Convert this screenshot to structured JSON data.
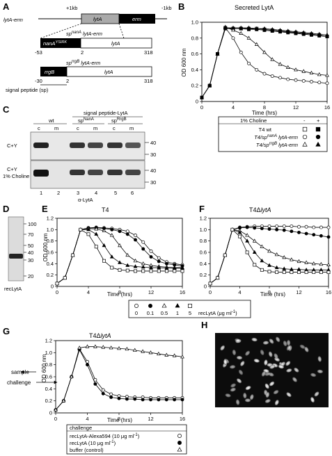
{
  "panels": {
    "A": {
      "label": "A",
      "construct_name": "lytA-erm",
      "plus_left": "+1kb",
      "minus_right": "-1kb",
      "lyta": "lytA",
      "erm": "erm",
      "nanA_construct": "sp",
      "nanA_sup": "nanA",
      "nanA_suffix": " lytA-erm",
      "nanA_box": "nanA",
      "nanA_box_sup": "YSIRK",
      "rrgB_construct": "sp",
      "rrgB_sup": "rrgB",
      "rrgB_suffix": " lytA-erm",
      "rrgB_box": "rrgB",
      "pos_neg53": "-53",
      "pos_neg30": "-30",
      "pos_2a": "2",
      "pos_2b": "2",
      "pos_318a": "318",
      "pos_318b": "318",
      "signal_caption": "signal peptide (sp)"
    },
    "B": {
      "label": "B",
      "title": "Secreted LytA",
      "ylabel": "OD 600 nm",
      "xlabel": "Time (hrs)",
      "legend_header": "1% Choline",
      "legend_minus": "-",
      "legend_plus": "+",
      "legend_rows": [
        "T4 wt",
        "T4/sp",
        "T4/sp"
      ],
      "legend_sups": [
        "",
        "nanA",
        "rrgB"
      ],
      "legend_suffixes": [
        "",
        " lytA-erm",
        " lytA-erm"
      ]
    },
    "C": {
      "label": "C",
      "header_wt": "wt",
      "header_sp": "signal peptide-LytA",
      "sp_nanA": "sp",
      "sp_nanA_sup": "NanA",
      "sp_rrgB": "sp",
      "sp_rrgB_sup": "RrgB",
      "lanes": [
        "c",
        "m",
        "c",
        "m",
        "c",
        "m"
      ],
      "lane_numbers": [
        "1",
        "2",
        "3",
        "4",
        "5",
        "6"
      ],
      "row1": "C+Y",
      "row2a": "C+Y",
      "row2b": "1% Choline",
      "mw_40a": "40",
      "mw_30a": "30",
      "mw_40b": "40",
      "mw_30b": "30",
      "antibody": "α-LytA"
    },
    "D": {
      "label": "D",
      "mw": [
        "100",
        "70",
        "50",
        "40",
        "30",
        "20"
      ],
      "caption": "recLytA"
    },
    "E": {
      "label": "E",
      "title": "T4",
      "ylabel": "OD 600 nm",
      "xlabel": "Time (hrs)"
    },
    "F": {
      "label": "F",
      "title": "T4ΔlytA",
      "xlabel": "Time (hrs)"
    },
    "EF_legend": {
      "values": [
        "0",
        "0.1",
        "0.5",
        "1",
        "5"
      ],
      "unit": "recLytA (μg ml",
      "unit_sup": "-1",
      "unit_close": ")"
    },
    "G": {
      "label": "G",
      "title": "T4ΔlytA",
      "ylabel": "OD 600 nm",
      "xlabel": "Time (hrs)",
      "sample_label": "sample",
      "challenge_label": "challenge",
      "legend_header": "challenge",
      "legend_rows": [
        "recLytA-Alexa594 (10 μg ml",
        "recLytA (10 μg ml",
        "buffer (control)"
      ],
      "legend_sups": [
        "-1",
        "-1",
        ""
      ],
      "legend_close": [
        ")",
        ")",
        ""
      ]
    },
    "H": {
      "label": "H"
    }
  },
  "chart_data": [
    {
      "panel": "B",
      "type": "line",
      "title": "Secreted LytA",
      "xlabel": "Time (hrs)",
      "ylabel": "OD 600 nm",
      "xlim": [
        0,
        16
      ],
      "ylim": [
        0,
        1.0
      ],
      "xticks": [
        0,
        4,
        8,
        12,
        16
      ],
      "yticks": [
        0,
        0.2,
        0.4,
        0.6,
        0.8,
        1.0
      ],
      "series": [
        {
          "name": "T4 wt",
          "marker": "square-open",
          "x": [
            0,
            1,
            2,
            3,
            4,
            5,
            6,
            7,
            8,
            9,
            10,
            11,
            12,
            13,
            14,
            15,
            16
          ],
          "y": [
            0.05,
            0.2,
            0.6,
            0.93,
            0.92,
            0.92,
            0.92,
            0.92,
            0.91,
            0.9,
            0.89,
            0.88,
            0.87,
            0.86,
            0.85,
            0.84,
            0.82
          ]
        },
        {
          "name": "T4 wt",
          "marker": "square-filled",
          "x": [
            0,
            1,
            2,
            3,
            4,
            5,
            6,
            7,
            8,
            9,
            10,
            11,
            12,
            13,
            14,
            15,
            16
          ],
          "y": [
            0.05,
            0.2,
            0.6,
            0.92,
            0.92,
            0.92,
            0.91,
            0.91,
            0.9,
            0.89,
            0.88,
            0.87,
            0.86,
            0.85,
            0.84,
            0.83,
            0.82
          ]
        },
        {
          "name": "T4/spnanA lytA-erm",
          "marker": "circle-open",
          "x": [
            0,
            1,
            2,
            3,
            4,
            5,
            6,
            7,
            8,
            9,
            10,
            11,
            12,
            13,
            14,
            15,
            16
          ],
          "y": [
            0.05,
            0.2,
            0.6,
            0.93,
            0.8,
            0.62,
            0.48,
            0.4,
            0.35,
            0.32,
            0.3,
            0.28,
            0.27,
            0.26,
            0.25,
            0.24,
            0.23
          ]
        },
        {
          "name": "T4/spnanA lytA-erm",
          "marker": "circle-filled",
          "x": [
            0,
            1,
            2,
            3,
            4,
            5,
            6,
            7,
            8,
            9,
            10,
            11,
            12,
            13,
            14,
            15,
            16
          ],
          "y": [
            0.05,
            0.2,
            0.6,
            0.92,
            0.92,
            0.92,
            0.92,
            0.91,
            0.9,
            0.89,
            0.88,
            0.87,
            0.86,
            0.85,
            0.84,
            0.83,
            0.82
          ]
        },
        {
          "name": "T4/sprrgB lytA-erm",
          "marker": "triangle-open",
          "x": [
            0,
            1,
            2,
            3,
            4,
            5,
            6,
            7,
            8,
            9,
            10,
            11,
            12,
            13,
            14,
            15,
            16
          ],
          "y": [
            0.05,
            0.2,
            0.6,
            0.94,
            0.9,
            0.86,
            0.8,
            0.72,
            0.62,
            0.53,
            0.47,
            0.43,
            0.4,
            0.38,
            0.36,
            0.34,
            0.33
          ]
        },
        {
          "name": "T4/sprrgB lytA-erm",
          "marker": "triangle-filled",
          "x": [
            0,
            1,
            2,
            3,
            4,
            5,
            6,
            7,
            8,
            9,
            10,
            11,
            12,
            13,
            14,
            15,
            16
          ],
          "y": [
            0.05,
            0.2,
            0.6,
            0.93,
            0.93,
            0.93,
            0.93,
            0.92,
            0.92,
            0.91,
            0.9,
            0.89,
            0.88,
            0.87,
            0.86,
            0.85,
            0.84
          ]
        }
      ]
    },
    {
      "panel": "E",
      "type": "line",
      "title": "T4",
      "xlabel": "Time (hrs)",
      "ylabel": "OD 600 nm",
      "xlim": [
        0,
        16
      ],
      "ylim": [
        0,
        1.2
      ],
      "xticks": [
        0,
        4,
        8,
        12,
        16
      ],
      "yticks": [
        0,
        0.2,
        0.4,
        0.6,
        0.8,
        1.0,
        1.2
      ],
      "series": [
        {
          "name": "0",
          "marker": "circle-open",
          "x": [
            0,
            1,
            2,
            3,
            4,
            5,
            6,
            7,
            8,
            9,
            10,
            11,
            12,
            13,
            14,
            15,
            16
          ],
          "y": [
            0.05,
            0.15,
            0.55,
            1.0,
            1.03,
            1.04,
            1.03,
            1.02,
            1.0,
            0.97,
            0.9,
            0.78,
            0.62,
            0.5,
            0.43,
            0.4,
            0.38
          ]
        },
        {
          "name": "0.1",
          "marker": "circle-filled",
          "x": [
            0,
            1,
            2,
            3,
            4,
            5,
            6,
            7,
            8,
            9,
            10,
            11,
            12,
            13,
            14,
            15,
            16
          ],
          "y": [
            0.05,
            0.15,
            0.55,
            1.0,
            1.03,
            1.03,
            1.02,
            1.0,
            0.97,
            0.92,
            0.82,
            0.66,
            0.52,
            0.44,
            0.4,
            0.38,
            0.36
          ]
        },
        {
          "name": "0.5",
          "marker": "triangle-open",
          "x": [
            0,
            1,
            2,
            3,
            4,
            5,
            6,
            7,
            8,
            9,
            10,
            11,
            12,
            13,
            14,
            15,
            16
          ],
          "y": [
            0.05,
            0.15,
            0.55,
            1.0,
            1.02,
            1.01,
            0.98,
            0.9,
            0.72,
            0.55,
            0.45,
            0.4,
            0.37,
            0.35,
            0.34,
            0.33,
            0.33
          ]
        },
        {
          "name": "1",
          "marker": "triangle-filled",
          "x": [
            0,
            1,
            2,
            3,
            4,
            5,
            6,
            7,
            8,
            9,
            10,
            11,
            12,
            13,
            14,
            15,
            16
          ],
          "y": [
            0.05,
            0.15,
            0.55,
            1.0,
            1.0,
            0.92,
            0.72,
            0.52,
            0.42,
            0.37,
            0.35,
            0.34,
            0.33,
            0.33,
            0.32,
            0.32,
            0.32
          ]
        },
        {
          "name": "5",
          "marker": "square-open",
          "x": [
            0,
            1,
            2,
            3,
            4,
            5,
            6,
            7,
            8,
            9,
            10,
            11,
            12,
            13,
            14,
            15,
            16
          ],
          "y": [
            0.05,
            0.15,
            0.55,
            1.0,
            0.92,
            0.7,
            0.45,
            0.33,
            0.29,
            0.28,
            0.27,
            0.27,
            0.27,
            0.27,
            0.27,
            0.27,
            0.27
          ]
        }
      ]
    },
    {
      "panel": "F",
      "type": "line",
      "title": "T4ΔlytA",
      "xlabel": "Time (hrs)",
      "ylabel": "",
      "xlim": [
        0,
        16
      ],
      "ylim": [
        0,
        1.2
      ],
      "xticks": [
        0,
        4,
        8,
        12,
        16
      ],
      "yticks": [
        0,
        0.2,
        0.4,
        0.6,
        0.8,
        1.0,
        1.2
      ],
      "series": [
        {
          "name": "0",
          "marker": "circle-open",
          "x": [
            0,
            1,
            2,
            3,
            4,
            5,
            6,
            7,
            8,
            9,
            10,
            11,
            12,
            13,
            14,
            15,
            16
          ],
          "y": [
            0.05,
            0.15,
            0.55,
            1.0,
            1.04,
            1.05,
            1.06,
            1.06,
            1.06,
            1.06,
            1.06,
            1.06,
            1.05,
            1.05,
            1.04,
            1.04,
            1.04
          ]
        },
        {
          "name": "0.1",
          "marker": "circle-filled",
          "x": [
            0,
            1,
            2,
            3,
            4,
            5,
            6,
            7,
            8,
            9,
            10,
            11,
            12,
            13,
            14,
            15,
            16
          ],
          "y": [
            0.05,
            0.15,
            0.55,
            1.0,
            1.03,
            1.04,
            1.03,
            1.02,
            1.01,
            1.0,
            0.99,
            0.97,
            0.95,
            0.93,
            0.91,
            0.89,
            0.87
          ]
        },
        {
          "name": "0.5",
          "marker": "triangle-open",
          "x": [
            0,
            1,
            2,
            3,
            4,
            5,
            6,
            7,
            8,
            9,
            10,
            11,
            12,
            13,
            14,
            15,
            16
          ],
          "y": [
            0.05,
            0.15,
            0.55,
            1.0,
            0.98,
            0.9,
            0.8,
            0.7,
            0.62,
            0.56,
            0.51,
            0.47,
            0.44,
            0.42,
            0.4,
            0.39,
            0.38
          ]
        },
        {
          "name": "1",
          "marker": "triangle-filled",
          "x": [
            0,
            1,
            2,
            3,
            4,
            5,
            6,
            7,
            8,
            9,
            10,
            11,
            12,
            13,
            14,
            15,
            16
          ],
          "y": [
            0.05,
            0.15,
            0.55,
            1.0,
            0.95,
            0.8,
            0.6,
            0.45,
            0.37,
            0.33,
            0.31,
            0.3,
            0.3,
            0.29,
            0.29,
            0.29,
            0.29
          ]
        },
        {
          "name": "5",
          "marker": "square-open",
          "x": [
            0,
            1,
            2,
            3,
            4,
            5,
            6,
            7,
            8,
            9,
            10,
            11,
            12,
            13,
            14,
            15,
            16
          ],
          "y": [
            0.05,
            0.15,
            0.55,
            1.0,
            0.88,
            0.6,
            0.38,
            0.29,
            0.26,
            0.25,
            0.25,
            0.25,
            0.25,
            0.25,
            0.25,
            0.25,
            0.25
          ]
        }
      ]
    },
    {
      "panel": "G",
      "type": "line",
      "title": "T4ΔlytA",
      "xlabel": "Time (hrs)",
      "ylabel": "OD 600 nm",
      "xlim": [
        0,
        16
      ],
      "ylim": [
        0,
        1.2
      ],
      "xticks": [
        0,
        4,
        8,
        12,
        16
      ],
      "yticks": [
        0,
        0.2,
        0.4,
        0.6,
        0.8,
        1.0,
        1.2
      ],
      "series": [
        {
          "name": "recLytA-Alexa594 (10 μg ml-1)",
          "marker": "circle-open",
          "x": [
            0,
            1,
            2,
            3,
            4,
            5,
            6,
            7,
            8,
            9,
            10,
            11,
            12,
            13,
            14,
            15,
            16
          ],
          "y": [
            0.05,
            0.2,
            0.6,
            1.06,
            0.85,
            0.55,
            0.38,
            0.31,
            0.28,
            0.27,
            0.26,
            0.26,
            0.25,
            0.25,
            0.25,
            0.25,
            0.25
          ]
        },
        {
          "name": "recLytA (10 μg ml-1)",
          "marker": "circle-filled",
          "x": [
            0,
            1,
            2,
            3,
            4,
            5,
            6,
            7,
            8,
            9,
            10,
            11,
            12,
            13,
            14,
            15,
            16
          ],
          "y": [
            0.05,
            0.2,
            0.6,
            1.05,
            0.8,
            0.48,
            0.32,
            0.26,
            0.24,
            0.23,
            0.23,
            0.22,
            0.22,
            0.22,
            0.22,
            0.22,
            0.22
          ]
        },
        {
          "name": "buffer (control)",
          "marker": "triangle-open",
          "x": [
            0,
            1,
            2,
            3,
            4,
            5,
            6,
            7,
            8,
            9,
            10,
            11,
            12,
            13,
            14,
            15,
            16
          ],
          "y": [
            0.05,
            0.2,
            0.6,
            1.08,
            1.1,
            1.1,
            1.09,
            1.08,
            1.07,
            1.06,
            1.04,
            1.02,
            1.0,
            0.98,
            0.96,
            0.95,
            0.93
          ]
        }
      ]
    }
  ]
}
